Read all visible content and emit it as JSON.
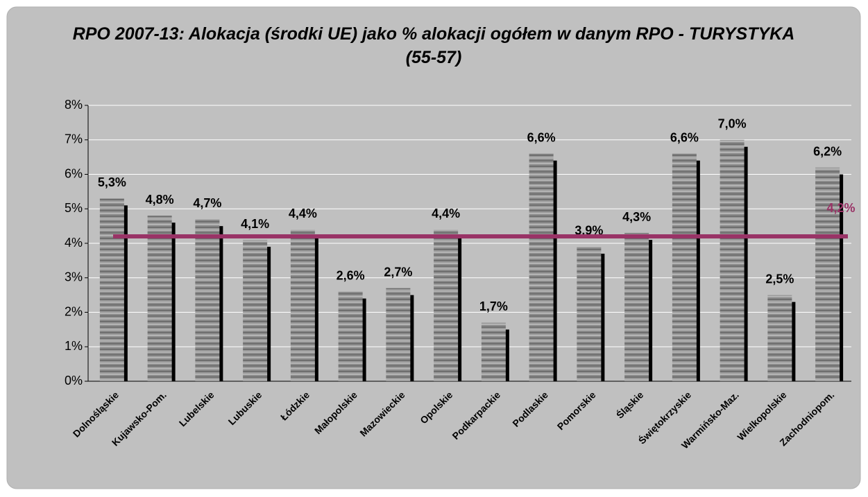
{
  "chart_data": {
    "type": "bar",
    "title": "RPO 2007-13: Alokacja (środki UE) jako % alokacji ogółem w danym RPO - TURYSTYKA (55-57)",
    "categories": [
      "Dolnośląskie",
      "Kujawsko-Pom.",
      "Lubelskie",
      "Lubuskie",
      "Łódzkie",
      "Małopolskie",
      "Mazowieckie",
      "Opolskie",
      "Podkarpackie",
      "Podlaskie",
      "Pomorskie",
      "Śląskie",
      "Świętokrzyskie",
      "Warmińsko-Maz.",
      "Wielkopolskie",
      "Zachodniopom."
    ],
    "values": [
      5.3,
      4.8,
      4.7,
      4.1,
      4.4,
      2.6,
      2.7,
      4.4,
      1.7,
      6.6,
      3.9,
      4.3,
      6.6,
      7.0,
      2.5,
      6.2
    ],
    "value_labels": [
      "5,3%",
      "4,8%",
      "4,7%",
      "4,1%",
      "4,4%",
      "2,6%",
      "2,7%",
      "4,4%",
      "1,7%",
      "6,6%",
      "3,9%",
      "4,3%",
      "6,6%",
      "7,0%",
      "2,5%",
      "6,2%"
    ],
    "average": 4.2,
    "average_label": "4,2%",
    "average_color": "#993366",
    "color": "#808080",
    "ylim": [
      0,
      8
    ],
    "yticks": [
      {
        "value": 0,
        "label": "0%"
      },
      {
        "value": 1,
        "label": "1%"
      },
      {
        "value": 2,
        "label": "2%"
      },
      {
        "value": 3,
        "label": "3%"
      },
      {
        "value": 4,
        "label": "4%"
      },
      {
        "value": 5,
        "label": "5%"
      },
      {
        "value": 6,
        "label": "6%"
      },
      {
        "value": 7,
        "label": "7%"
      },
      {
        "value": 8,
        "label": "8%"
      }
    ],
    "grid": true
  }
}
